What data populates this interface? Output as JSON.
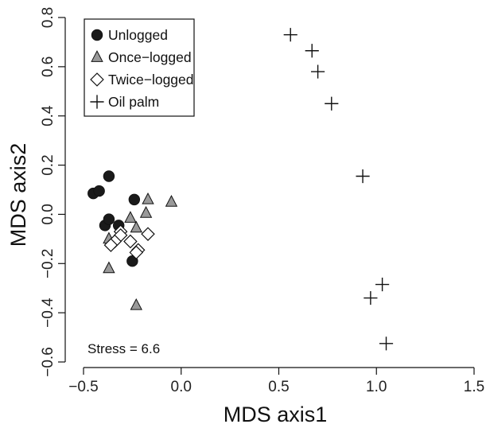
{
  "chart_data": {
    "type": "scatter",
    "title": "",
    "xlabel": "MDS axis1",
    "ylabel": "MDS axis2",
    "xlim": [
      -0.5,
      1.5
    ],
    "ylim": [
      -0.6,
      0.8
    ],
    "xticks": [
      -0.5,
      0.0,
      0.5,
      1.0,
      1.5
    ],
    "xtick_labels": [
      "−0.5",
      "0.0",
      "0.5",
      "1.0",
      "1.5"
    ],
    "yticks": [
      -0.6,
      -0.4,
      -0.2,
      0.0,
      0.2,
      0.4,
      0.6,
      0.8
    ],
    "ytick_labels": [
      "−0.6",
      "−0.4",
      "−0.2",
      "0.0",
      "0.2",
      "0.4",
      "0.6",
      "0.8"
    ],
    "grid": false,
    "legend_position": "top-left",
    "annotation": "Stress = 6.6",
    "series": [
      {
        "name": "Unlogged",
        "marker": "filled-circle",
        "color": "#1a1a1a",
        "points": [
          [
            -0.45,
            0.085
          ],
          [
            -0.42,
            0.095
          ],
          [
            -0.37,
            0.155
          ],
          [
            -0.39,
            -0.045
          ],
          [
            -0.37,
            -0.02
          ],
          [
            -0.24,
            0.06
          ],
          [
            -0.32,
            -0.045
          ],
          [
            -0.25,
            -0.19
          ]
        ]
      },
      {
        "name": "Once−logged",
        "marker": "filled-triangle",
        "color": "#999999",
        "points": [
          [
            -0.17,
            0.06
          ],
          [
            -0.05,
            0.05
          ],
          [
            -0.18,
            0.005
          ],
          [
            -0.26,
            -0.015
          ],
          [
            -0.23,
            -0.055
          ],
          [
            -0.37,
            -0.1
          ],
          [
            -0.37,
            -0.22
          ],
          [
            -0.23,
            -0.37
          ]
        ]
      },
      {
        "name": "Twice−logged",
        "marker": "open-diamond",
        "color": "#111111",
        "points": [
          [
            -0.31,
            -0.07
          ],
          [
            -0.31,
            -0.085
          ],
          [
            -0.17,
            -0.08
          ],
          [
            -0.34,
            -0.11
          ],
          [
            -0.36,
            -0.125
          ],
          [
            -0.26,
            -0.11
          ],
          [
            -0.22,
            -0.145
          ],
          [
            -0.23,
            -0.155
          ]
        ]
      },
      {
        "name": "Oil palm",
        "marker": "plus",
        "color": "#111111",
        "points": [
          [
            0.56,
            0.73
          ],
          [
            0.67,
            0.665
          ],
          [
            0.7,
            0.58
          ],
          [
            0.77,
            0.45
          ],
          [
            0.93,
            0.155
          ],
          [
            1.03,
            -0.285
          ],
          [
            0.97,
            -0.34
          ],
          [
            1.05,
            -0.525
          ]
        ]
      }
    ]
  }
}
